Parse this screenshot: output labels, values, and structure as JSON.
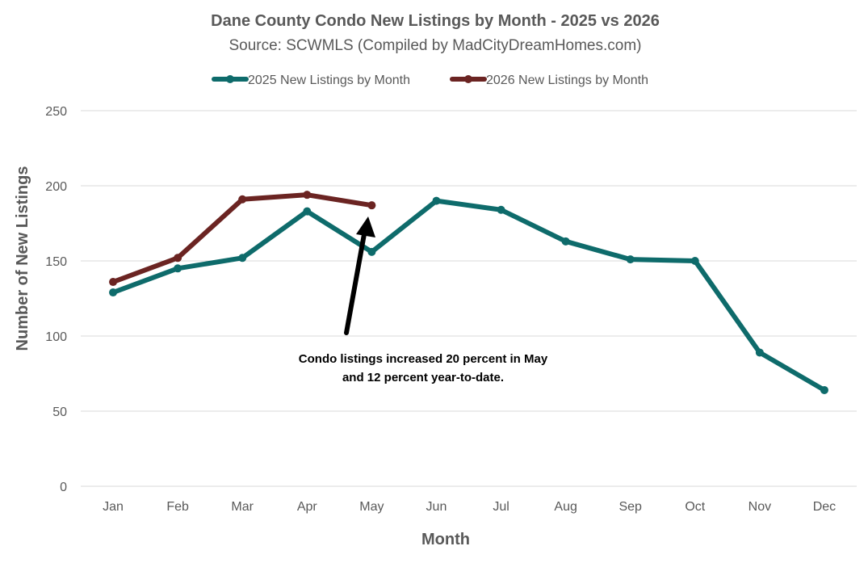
{
  "chart_data": {
    "type": "line",
    "title": "Dane County Condo New Listings by Month - 2025 vs 2026",
    "subtitle": "Source: SCWMLS (Compiled by MadCityDreamHomes.com)",
    "xlabel": "Month",
    "ylabel": "Number of New Listings",
    "categories": [
      "Jan",
      "Feb",
      "Mar",
      "Apr",
      "May",
      "Jun",
      "Jul",
      "Aug",
      "Sep",
      "Oct",
      "Nov",
      "Dec"
    ],
    "ylim": [
      0,
      250
    ],
    "yticks": [
      0,
      50,
      100,
      150,
      200,
      250
    ],
    "grid": true,
    "legend_position": "top",
    "series": [
      {
        "name": "2025 New Listings by Month",
        "color": "#0e6b6b",
        "values": [
          129,
          145,
          152,
          183,
          156,
          190,
          184,
          163,
          151,
          150,
          89,
          64
        ]
      },
      {
        "name": "2026 New Listings by Month",
        "color": "#6b2422",
        "values": [
          136,
          152,
          191,
          194,
          187,
          null,
          null,
          null,
          null,
          null,
          null,
          null
        ]
      }
    ],
    "annotation": {
      "lines": [
        "Condo listings increased 20 percent in May",
        "and 12 percent year-to-date."
      ],
      "points_to": "May"
    }
  }
}
